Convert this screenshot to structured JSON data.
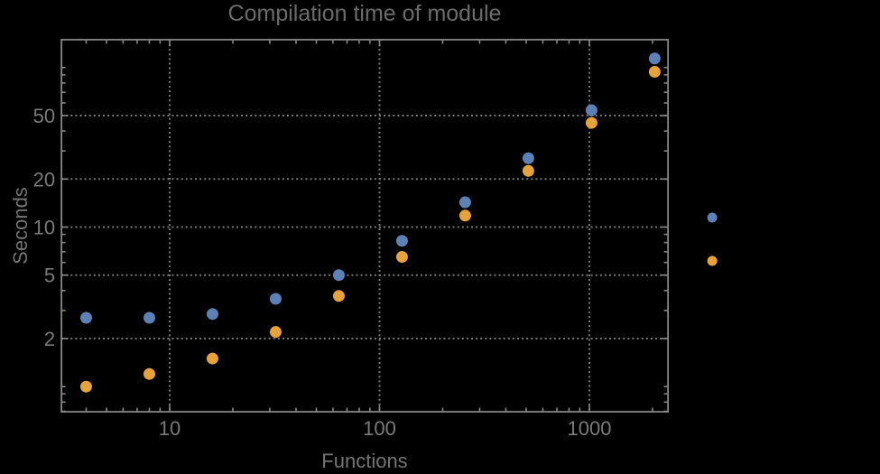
{
  "window": {
    "background": "#000000"
  },
  "chart_data": {
    "type": "scatter",
    "title": "Compilation time of module",
    "xlabel": "Functions",
    "ylabel": "Seconds",
    "x_scale": "log",
    "y_scale": "log",
    "x_range": [
      3.05,
      2370
    ],
    "y_range": [
      0.695,
      149.5
    ],
    "grid": {
      "style": "dotted",
      "x_values": [
        10,
        100,
        1000
      ],
      "y_values": [
        2,
        5,
        10,
        20,
        50
      ]
    },
    "x_ticks": [
      {
        "value": 10,
        "label": "10"
      },
      {
        "value": 100,
        "label": "100"
      },
      {
        "value": 1000,
        "label": "1000"
      }
    ],
    "y_ticks": [
      {
        "value": 2,
        "label": "2"
      },
      {
        "value": 5,
        "label": "5"
      },
      {
        "value": 10,
        "label": "10"
      },
      {
        "value": 20,
        "label": "20"
      },
      {
        "value": 50,
        "label": "50"
      }
    ],
    "x": [
      4,
      8,
      16,
      32,
      64,
      128,
      256,
      512,
      1024,
      2048
    ],
    "series": [
      {
        "name": "blue-series",
        "color": "#5E81B5",
        "values": [
          2.7,
          2.7,
          2.85,
          3.55,
          5.0,
          8.2,
          14.3,
          27,
          54,
          114
        ]
      },
      {
        "name": "orange-series",
        "color": "#E6A23B",
        "values": [
          1.0,
          1.2,
          1.5,
          2.2,
          3.7,
          6.5,
          11.8,
          22.5,
          45,
          94
        ]
      }
    ],
    "legend": {
      "position": "outside-right",
      "labels_visible": false,
      "markers": [
        {
          "series": "blue-series",
          "color": "#5E81B5"
        },
        {
          "series": "orange-series",
          "color": "#E6A23B"
        }
      ]
    }
  },
  "style": {
    "frame_color": "#868686",
    "grid_color": "#777777",
    "tick_label_color": "#7A7A7A",
    "axis_label_color": "#747474",
    "title_color": "#6B6B6B"
  }
}
